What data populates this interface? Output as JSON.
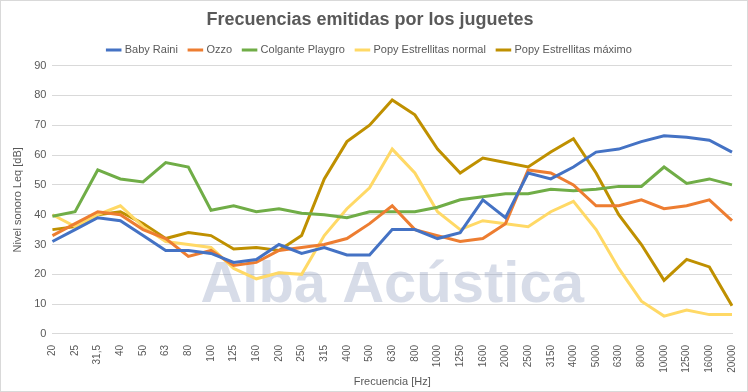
{
  "chart_data": {
    "type": "line",
    "title": "Frecuencias emitidas por los juguetes",
    "x_label": "Frecuencia [Hz]",
    "y_label": "Nivel sonoro Leq [dB]",
    "annotations": [
      "Alba Acústica"
    ],
    "categories": [
      "20",
      "25",
      "31,5",
      "40",
      "50",
      "63",
      "80",
      "100",
      "125",
      "160",
      "200",
      "250",
      "315",
      "400",
      "500",
      "630",
      "800",
      "1000",
      "1250",
      "1600",
      "2000",
      "2500",
      "3150",
      "4000",
      "5000",
      "6300",
      "8000",
      "10000",
      "12500",
      "16000",
      "20000"
    ],
    "series": [
      {
        "name": "Baby Raini",
        "color": "#4472c4",
        "marker": "none",
        "line_style": "solid",
        "values": [
          31,
          35,
          39,
          38,
          33,
          28,
          28,
          27,
          24,
          25,
          30,
          27,
          29,
          26.5,
          26.5,
          35,
          35,
          32,
          34,
          45,
          39,
          54,
          52,
          56,
          61,
          62,
          64.5,
          66.5,
          66,
          65,
          61
        ]
      },
      {
        "name": "Ozzo",
        "color": "#ed7d31",
        "marker": "none",
        "line_style": "solid",
        "values": [
          33,
          37,
          41,
          40,
          35,
          32,
          26,
          28,
          23,
          24,
          28,
          29,
          30,
          32,
          37,
          43,
          35,
          33,
          31,
          32,
          37,
          55,
          54,
          50,
          43,
          43,
          45,
          42,
          43,
          45,
          38
        ]
      },
      {
        "name": "Colgante Playgro",
        "color": "#70ad47",
        "marker": "none",
        "line_style": "solid",
        "values": [
          39.5,
          41,
          55,
          52,
          51,
          57.5,
          56,
          41.5,
          43,
          41,
          42,
          40.5,
          40,
          39,
          41,
          41,
          41,
          42.5,
          45,
          46,
          47,
          47,
          48.5,
          48,
          48.5,
          49.5,
          49.5,
          56,
          50.5,
          52,
          50
        ]
      },
      {
        "name": "Popy Estrellitas normal",
        "color": "#ffd966",
        "marker": "none",
        "line_style": "solid",
        "values": [
          40,
          36,
          40,
          43,
          36,
          31,
          30,
          29,
          22,
          18.5,
          20.5,
          20,
          33,
          42,
          49,
          62,
          54,
          41,
          35,
          38,
          37,
          36,
          41,
          44.5,
          35,
          22,
          11,
          6,
          8,
          6.5,
          6.5
        ]
      },
      {
        "name": "Popy Estrellitas máximo",
        "color": "#bf9000",
        "marker": "none",
        "line_style": "solid",
        "values": [
          35,
          36,
          40,
          41,
          37,
          32,
          34,
          33,
          28.5,
          29,
          28,
          33,
          52,
          64.5,
          70,
          78.5,
          73.5,
          62,
          54,
          59,
          57.5,
          56,
          61,
          65.5,
          54,
          40,
          30,
          18,
          25,
          22.5,
          9.5
        ]
      }
    ],
    "ylim": [
      0,
      90
    ],
    "yticks": [
      0,
      10,
      20,
      30,
      40,
      50,
      60,
      70,
      80,
      90
    ],
    "grid": true,
    "legend": "top"
  }
}
